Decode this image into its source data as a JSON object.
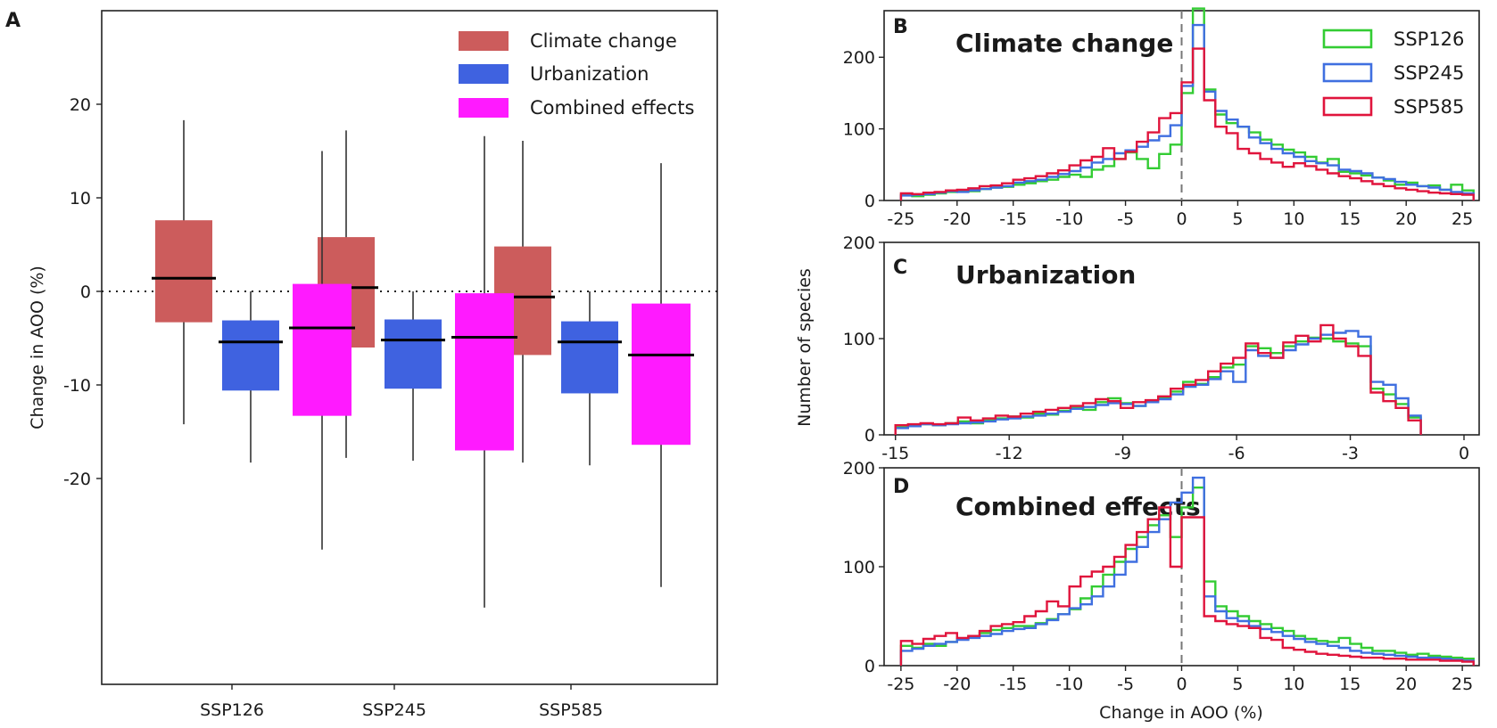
{
  "chart_data": [
    {
      "id": "A",
      "type": "box",
      "panel_label": "A",
      "ylabel": "Change in AOO (%)",
      "ylim": [
        -42,
        30
      ],
      "yticks": [
        20,
        10,
        0,
        -10,
        -20
      ],
      "reference_line": 0,
      "categories": [
        "SSP126",
        "SSP245",
        "SSP585"
      ],
      "legend": {
        "position": "top-right",
        "entries": [
          {
            "label": "Climate change",
            "color": "#cc5c5c"
          },
          {
            "label": "Urbanization",
            "color": "#3f62e0"
          },
          {
            "label": "Combined effects",
            "color": "#ff1aff"
          }
        ]
      },
      "series": [
        {
          "name": "Climate change",
          "color": "#cc5c5c",
          "boxes": [
            {
              "whisker_low": -14.2,
              "q1": -3.3,
              "median": 1.4,
              "q3": 7.6,
              "whisker_high": 18.3
            },
            {
              "whisker_low": -17.8,
              "q1": -6.0,
              "median": 0.4,
              "q3": 5.8,
              "whisker_high": 17.2
            },
            {
              "whisker_low": -18.3,
              "q1": -6.8,
              "median": -0.6,
              "q3": 4.8,
              "whisker_high": 16.1
            }
          ]
        },
        {
          "name": "Urbanization",
          "color": "#3f62e0",
          "boxes": [
            {
              "whisker_low": -18.3,
              "q1": -10.6,
              "median": -5.4,
              "q3": -3.1,
              "whisker_high": 0
            },
            {
              "whisker_low": -18.1,
              "q1": -10.4,
              "median": -5.2,
              "q3": -3.0,
              "whisker_high": 0
            },
            {
              "whisker_low": -18.6,
              "q1": -10.9,
              "median": -5.4,
              "q3": -3.2,
              "whisker_high": 0
            }
          ]
        },
        {
          "name": "Combined effects",
          "color": "#ff1aff",
          "boxes": [
            {
              "whisker_low": -27.6,
              "q1": -13.3,
              "median": -3.9,
              "q3": 0.8,
              "whisker_high": 15.0
            },
            {
              "whisker_low": -33.8,
              "q1": -17.0,
              "median": -4.9,
              "q3": -0.2,
              "whisker_high": 16.6
            },
            {
              "whisker_low": -31.6,
              "q1": -16.4,
              "median": -6.8,
              "q3": -1.3,
              "whisker_high": 13.7
            }
          ]
        }
      ]
    },
    {
      "id": "B",
      "type": "histogram",
      "panel_label": "B",
      "title": "Climate change",
      "xlim": [
        -26.5,
        26.5
      ],
      "xticks": [
        -25,
        -20,
        -15,
        -10,
        -5,
        0,
        5,
        10,
        15,
        20,
        25
      ],
      "ylim": [
        0,
        265
      ],
      "yticks": [
        0,
        100,
        200
      ],
      "vline": 0,
      "bin_edges_start": -25,
      "bin_width": 1,
      "series": [
        {
          "name": "SSP126",
          "color": "#33cc33",
          "counts": [
            8,
            6,
            8,
            10,
            12,
            14,
            13,
            16,
            18,
            19,
            22,
            24,
            27,
            29,
            33,
            36,
            33,
            43,
            48,
            58,
            67,
            58,
            45,
            65,
            78,
            150,
            268,
            155,
            120,
            108,
            103,
            95,
            85,
            78,
            71,
            67,
            61,
            53,
            58,
            40,
            38,
            35,
            32,
            28,
            22,
            25,
            20,
            21,
            15,
            22,
            14
          ]
        },
        {
          "name": "SSP245",
          "color": "#3f6fe0",
          "counts": [
            7,
            8,
            9,
            11,
            13,
            12,
            14,
            16,
            18,
            20,
            25,
            27,
            29,
            33,
            37,
            41,
            46,
            53,
            58,
            66,
            70,
            75,
            84,
            90,
            105,
            160,
            245,
            152,
            125,
            113,
            103,
            88,
            80,
            72,
            66,
            61,
            55,
            52,
            49,
            43,
            41,
            38,
            32,
            30,
            26,
            22,
            20,
            18,
            15,
            12,
            10
          ]
        },
        {
          "name": "SSP585",
          "color": "#e0143c",
          "counts": [
            10,
            9,
            11,
            12,
            14,
            15,
            17,
            20,
            21,
            24,
            29,
            31,
            34,
            38,
            42,
            49,
            56,
            61,
            73,
            58,
            68,
            82,
            95,
            115,
            122,
            165,
            212,
            140,
            103,
            94,
            72,
            66,
            58,
            53,
            47,
            52,
            48,
            43,
            38,
            34,
            31,
            27,
            23,
            20,
            17,
            15,
            13,
            11,
            10,
            9,
            8
          ]
        }
      ]
    },
    {
      "id": "C",
      "type": "histogram",
      "panel_label": "C",
      "title": "Urbanization",
      "xlim": [
        -15.3,
        0.4
      ],
      "xticks": [
        -15,
        -12,
        -9,
        -6,
        -3,
        0
      ],
      "ylim": [
        0,
        200
      ],
      "yticks": [
        0,
        100,
        200
      ],
      "bin_edges_start": -15,
      "bin_width": 0.33,
      "series": [
        {
          "name": "SSP126",
          "color": "#33cc33",
          "counts": [
            8,
            10,
            11,
            10,
            12,
            14,
            12,
            15,
            17,
            19,
            18,
            22,
            21,
            25,
            28,
            26,
            34,
            38,
            33,
            30,
            35,
            39,
            45,
            55,
            53,
            60,
            70,
            73,
            92,
            90,
            85,
            92,
            97,
            101,
            100,
            97,
            95,
            92,
            48,
            42,
            32,
            18
          ]
        },
        {
          "name": "SSP245",
          "color": "#3f6fe0",
          "counts": [
            7,
            9,
            11,
            10,
            11,
            12,
            13,
            14,
            16,
            17,
            19,
            20,
            22,
            24,
            27,
            29,
            31,
            33,
            32,
            30,
            34,
            37,
            42,
            50,
            52,
            58,
            66,
            55,
            88,
            82,
            80,
            88,
            94,
            100,
            104,
            106,
            108,
            102,
            55,
            52,
            38,
            20
          ]
        },
        {
          "name": "SSP585",
          "color": "#e0143c",
          "counts": [
            10,
            11,
            12,
            11,
            12,
            18,
            15,
            17,
            20,
            19,
            22,
            24,
            26,
            28,
            30,
            33,
            37,
            35,
            28,
            34,
            36,
            40,
            48,
            52,
            57,
            66,
            74,
            80,
            95,
            85,
            80,
            96,
            103,
            97,
            114,
            100,
            92,
            82,
            44,
            35,
            28,
            15
          ]
        }
      ]
    },
    {
      "id": "D",
      "type": "histogram",
      "panel_label": "D",
      "title": "Combined effects",
      "xlabel": "Change in AOO (%)",
      "xlim": [
        -26.5,
        26.5
      ],
      "xticks": [
        -25,
        -20,
        -15,
        -10,
        -5,
        0,
        5,
        10,
        15,
        20,
        25
      ],
      "ylim": [
        0,
        200
      ],
      "yticks": [
        0,
        100,
        200
      ],
      "vline": 0,
      "bin_edges_start": -25,
      "bin_width": 1,
      "series": [
        {
          "name": "SSP126",
          "color": "#33cc33",
          "counts": [
            20,
            18,
            22,
            20,
            24,
            27,
            30,
            33,
            36,
            38,
            40,
            40,
            43,
            47,
            52,
            57,
            68,
            80,
            92,
            105,
            118,
            130,
            142,
            152,
            130,
            160,
            180,
            85,
            60,
            55,
            50,
            45,
            42,
            38,
            35,
            30,
            27,
            25,
            24,
            28,
            22,
            18,
            15,
            15,
            13,
            11,
            12,
            10,
            9,
            8,
            7
          ]
        },
        {
          "name": "SSP245",
          "color": "#3f6fe0",
          "counts": [
            15,
            17,
            20,
            22,
            24,
            26,
            28,
            30,
            32,
            35,
            37,
            38,
            42,
            46,
            52,
            58,
            62,
            70,
            80,
            92,
            105,
            120,
            135,
            148,
            165,
            175,
            190,
            70,
            55,
            48,
            45,
            40,
            37,
            34,
            30,
            27,
            24,
            22,
            20,
            18,
            15,
            13,
            12,
            11,
            10,
            9,
            8,
            8,
            7,
            6,
            5
          ]
        },
        {
          "name": "SSP585",
          "color": "#e0143c",
          "counts": [
            25,
            22,
            27,
            30,
            33,
            28,
            30,
            35,
            40,
            42,
            44,
            50,
            55,
            65,
            60,
            80,
            90,
            95,
            100,
            110,
            122,
            135,
            148,
            160,
            100,
            150,
            150,
            50,
            45,
            42,
            40,
            38,
            28,
            26,
            18,
            16,
            14,
            12,
            11,
            10,
            9,
            8,
            8,
            7,
            7,
            6,
            6,
            6,
            5,
            5,
            4
          ]
        }
      ]
    }
  ],
  "shared": {
    "ylabel_right": "Number of species",
    "legend_entries": [
      {
        "label": "SSP126",
        "color": "#33cc33"
      },
      {
        "label": "SSP245",
        "color": "#3f6fe0"
      },
      {
        "label": "SSP585",
        "color": "#e0143c"
      }
    ]
  }
}
